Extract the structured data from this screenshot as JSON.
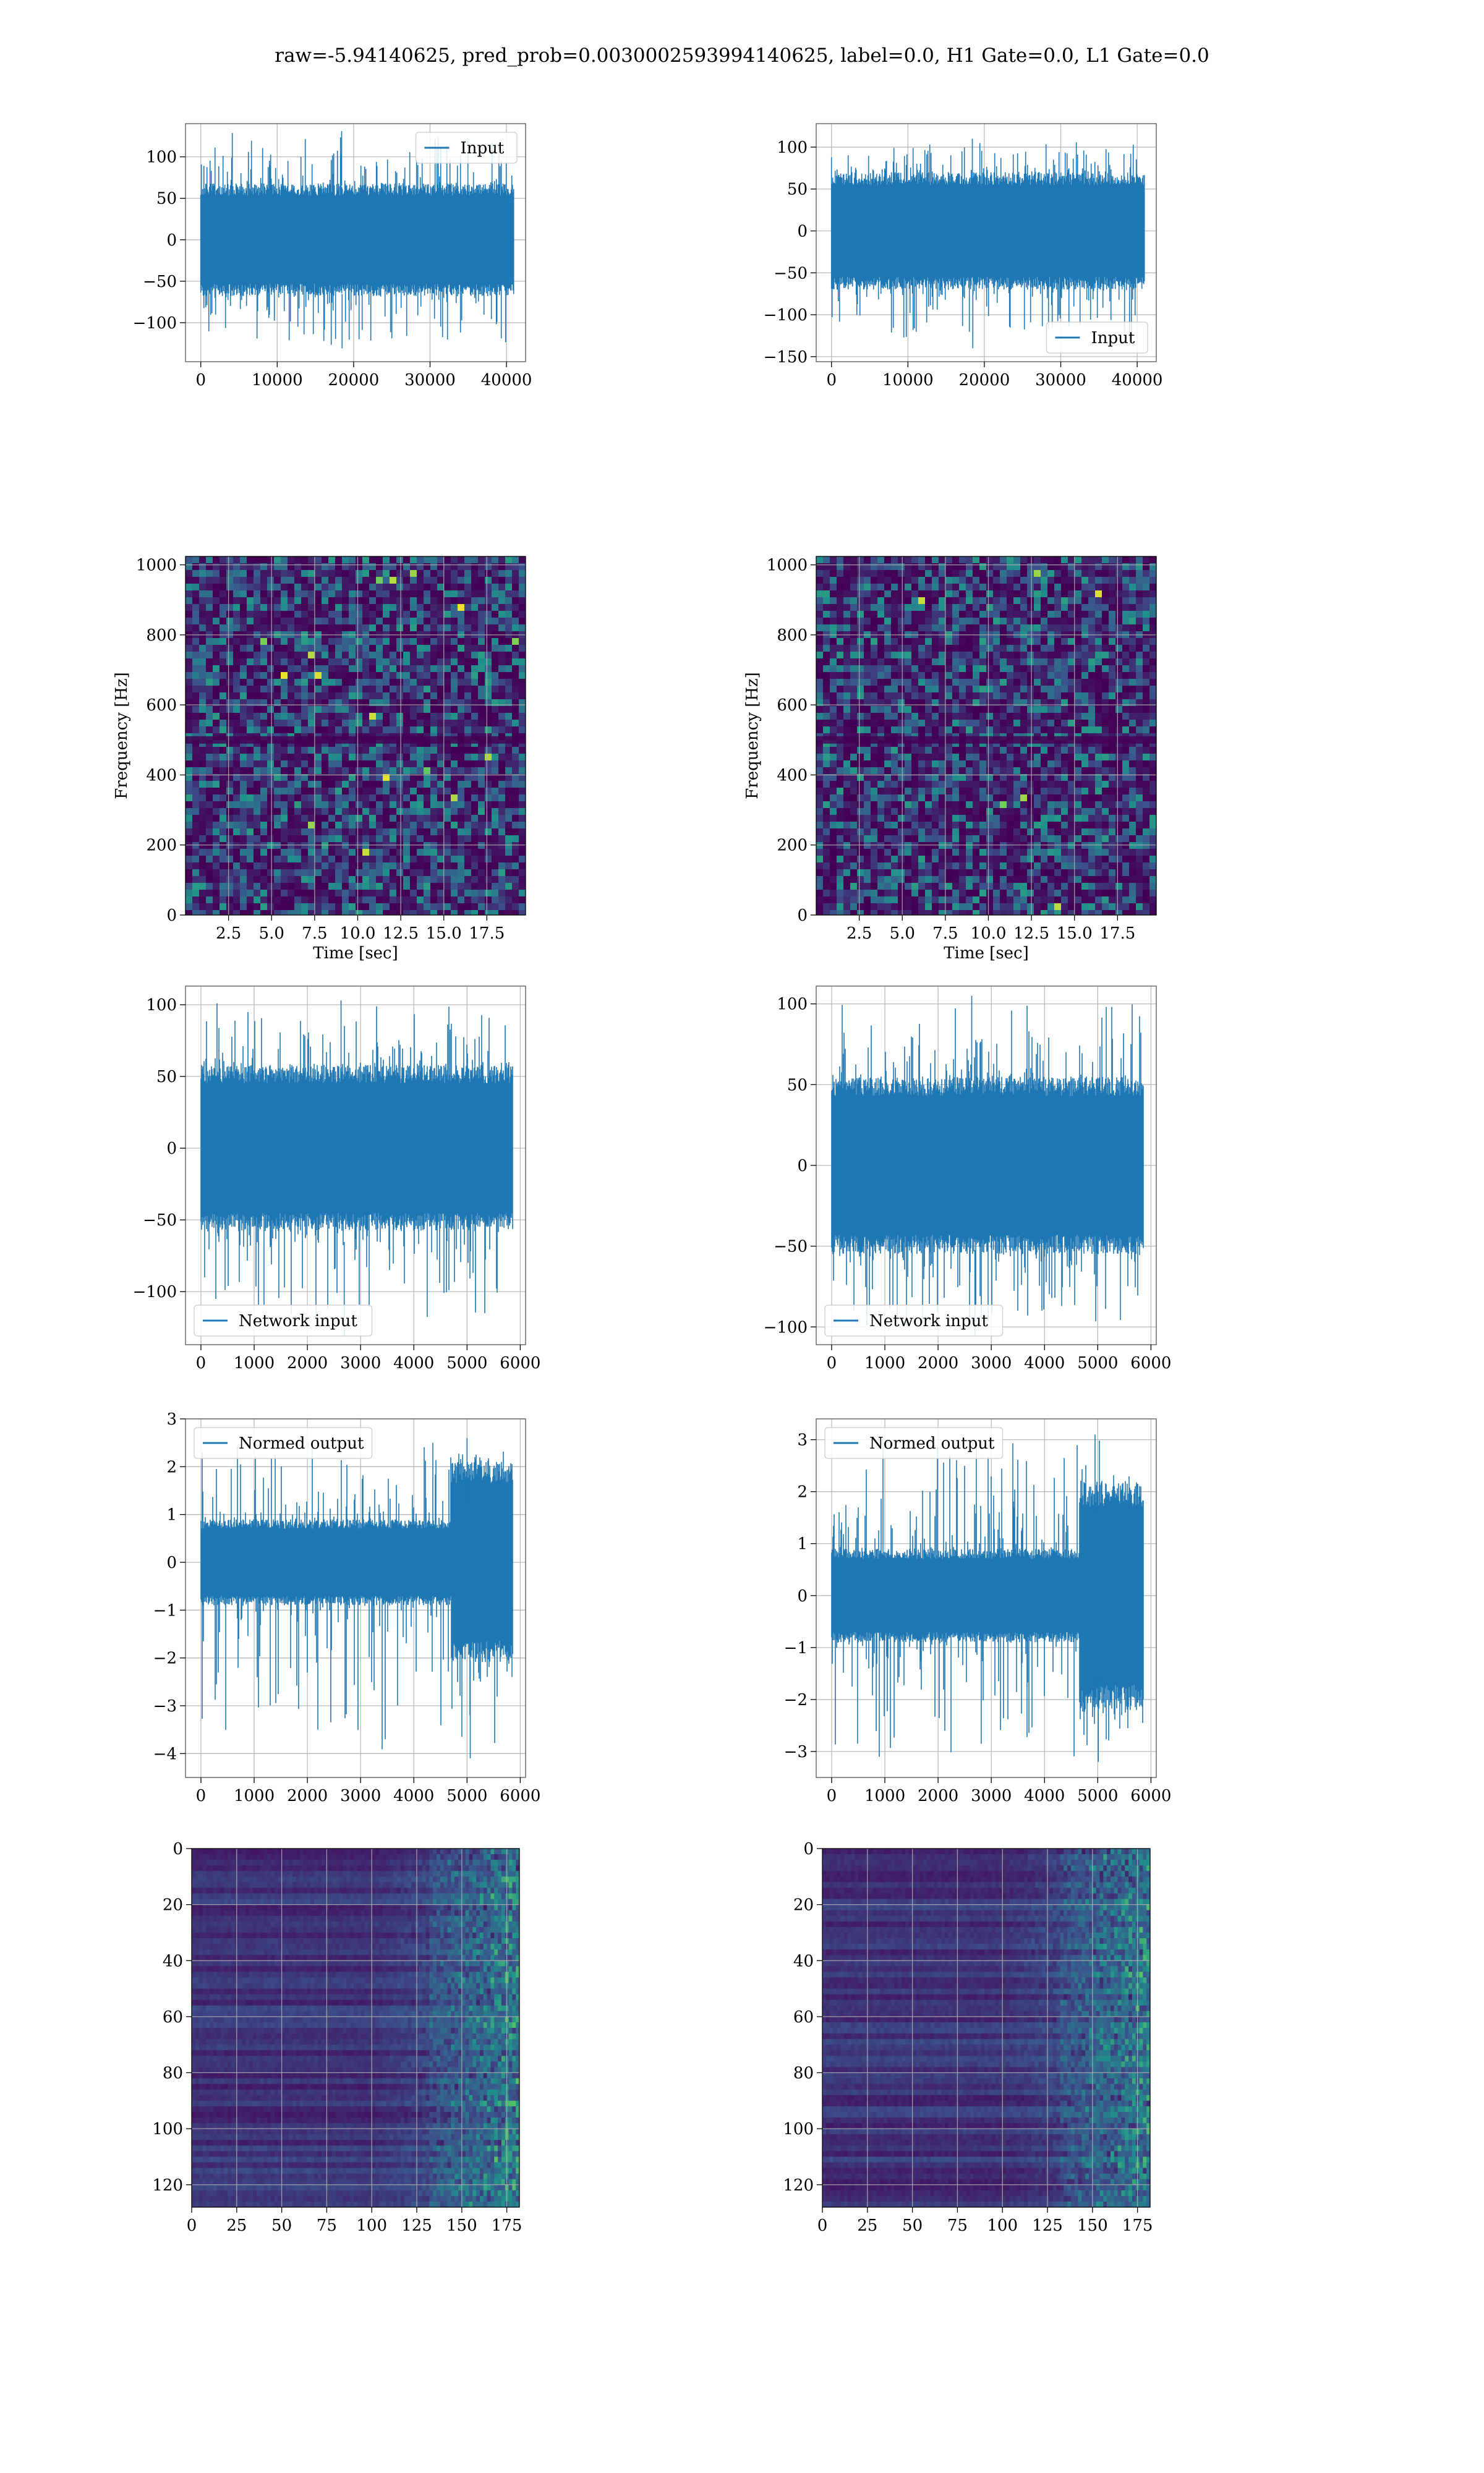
{
  "figure": {
    "suptitle": "raw=-5.94140625, pred_prob=0.0030002593994140625, label=0.0, H1 Gate=0.0, L1 Gate=0.0",
    "colors": {
      "line": "#1f77b4",
      "grid": "#b0b0b0",
      "spine": "#000000",
      "cmap": [
        "#440154",
        "#3b528b",
        "#21918c",
        "#5ec962",
        "#fde725"
      ]
    }
  },
  "chart_data": [
    {
      "id": "r1c1",
      "type": "line",
      "legend": "Input",
      "legend_loc": "upper right",
      "xlim": [
        -2000,
        42500
      ],
      "ylim": [
        -147,
        140
      ],
      "xticks": [
        "0",
        "10000",
        "20000",
        "30000",
        "40000"
      ],
      "xtick_values": [
        0,
        10000,
        20000,
        30000,
        40000
      ],
      "yticks": [
        "−100",
        "−50",
        "0",
        "50",
        "100"
      ],
      "ytick_values": [
        -100,
        -50,
        0,
        50,
        100
      ],
      "series": {
        "x_range": [
          0,
          40960
        ],
        "core": 68,
        "peak_max": 131,
        "peak_min": -131
      }
    },
    {
      "id": "r1c2",
      "type": "line",
      "legend": "Input",
      "legend_loc": "lower right",
      "xlim": [
        -2000,
        42500
      ],
      "ylim": [
        -156,
        128
      ],
      "xticks": [
        "0",
        "10000",
        "20000",
        "30000",
        "40000"
      ],
      "xtick_values": [
        0,
        10000,
        20000,
        30000,
        40000
      ],
      "yticks": [
        "−150",
        "−100",
        "−50",
        "0",
        "50",
        "100"
      ],
      "ytick_values": [
        -150,
        -100,
        -50,
        0,
        50,
        100
      ],
      "series": {
        "x_range": [
          0,
          40960
        ],
        "core": 70,
        "peak_max": 110,
        "peak_min": -140
      }
    },
    {
      "id": "r2c1",
      "type": "heatmap",
      "ylabel": "Frequency [Hz]",
      "xlabel": "Time [sec]",
      "xlim": [
        0,
        19.75
      ],
      "ylim": [
        0,
        1024
      ],
      "xticks": [
        "2.5",
        "5.0",
        "7.5",
        "10.0",
        "12.5",
        "15.0",
        "17.5"
      ],
      "xtick_values": [
        2.5,
        5,
        7.5,
        10,
        12.5,
        15,
        17.5
      ],
      "yticks": [
        "0",
        "200",
        "400",
        "600",
        "800",
        "1000"
      ],
      "ytick_values": [
        0,
        200,
        400,
        600,
        800,
        1000
      ]
    },
    {
      "id": "r2c2",
      "type": "heatmap",
      "ylabel": "Frequency [Hz]",
      "xlabel": "Time [sec]",
      "xlim": [
        0,
        19.75
      ],
      "ylim": [
        0,
        1024
      ],
      "xticks": [
        "2.5",
        "5.0",
        "7.5",
        "10.0",
        "12.5",
        "15.0",
        "17.5"
      ],
      "xtick_values": [
        2.5,
        5,
        7.5,
        10,
        12.5,
        15,
        17.5
      ],
      "yticks": [
        "0",
        "200",
        "400",
        "600",
        "800",
        "1000"
      ],
      "ytick_values": [
        0,
        200,
        400,
        600,
        800,
        1000
      ]
    },
    {
      "id": "r3c1",
      "type": "line",
      "legend": "Network input",
      "legend_loc": "lower left",
      "xlim": [
        -290,
        6100
      ],
      "ylim": [
        -137,
        113
      ],
      "xticks": [
        "0",
        "1000",
        "2000",
        "3000",
        "4000",
        "5000",
        "6000"
      ],
      "xtick_values": [
        0,
        1000,
        2000,
        3000,
        4000,
        5000,
        6000
      ],
      "yticks": [
        "−100",
        "−50",
        "0",
        "50",
        "100"
      ],
      "ytick_values": [
        -100,
        -50,
        0,
        50,
        100
      ],
      "series": {
        "x_range": [
          0,
          5850
        ],
        "core": 58,
        "peak_max": 103,
        "peak_min": -131
      }
    },
    {
      "id": "r3c2",
      "type": "line",
      "legend": "Network input",
      "legend_loc": "lower left",
      "xlim": [
        -290,
        6100
      ],
      "ylim": [
        -111,
        111
      ],
      "xticks": [
        "0",
        "1000",
        "2000",
        "3000",
        "4000",
        "5000",
        "6000"
      ],
      "xtick_values": [
        0,
        1000,
        2000,
        3000,
        4000,
        5000,
        6000
      ],
      "yticks": [
        "−100",
        "−50",
        "0",
        "50",
        "100"
      ],
      "ytick_values": [
        -100,
        -50,
        0,
        50,
        100
      ],
      "series": {
        "x_range": [
          0,
          5850
        ],
        "core": 55,
        "peak_max": 105,
        "peak_min": -105
      }
    },
    {
      "id": "r4c1",
      "type": "line",
      "legend": "Normed output",
      "legend_loc": "upper left",
      "xlim": [
        -290,
        6100
      ],
      "ylim": [
        -4.5,
        3.0
      ],
      "xticks": [
        "0",
        "1000",
        "2000",
        "3000",
        "4000",
        "5000",
        "6000"
      ],
      "xtick_values": [
        0,
        1000,
        2000,
        3000,
        4000,
        5000,
        6000
      ],
      "yticks": [
        "−4",
        "−3",
        "−2",
        "−1",
        "0",
        "1",
        "2",
        "3"
      ],
      "ytick_values": [
        -4,
        -3,
        -2,
        -1,
        0,
        1,
        2,
        3
      ],
      "series": {
        "x_range": [
          0,
          5850
        ],
        "core": 0.9,
        "burst_start": 4700,
        "burst_core": 2.1,
        "peak_max": 2.6,
        "peak_min": -4.1
      }
    },
    {
      "id": "r4c2",
      "type": "line",
      "legend": "Normed output",
      "legend_loc": "upper left",
      "xlim": [
        -290,
        6100
      ],
      "ylim": [
        -3.5,
        3.4
      ],
      "xticks": [
        "0",
        "1000",
        "2000",
        "3000",
        "4000",
        "5000",
        "6000"
      ],
      "xtick_values": [
        0,
        1000,
        2000,
        3000,
        4000,
        5000,
        6000
      ],
      "yticks": [
        "−3",
        "−2",
        "−1",
        "0",
        "1",
        "2",
        "3"
      ],
      "ytick_values": [
        -3,
        -2,
        -1,
        0,
        1,
        2,
        3
      ],
      "series": {
        "x_range": [
          0,
          5850
        ],
        "core": 0.9,
        "burst_start": 4650,
        "burst_core": 2.2,
        "peak_max": 3.1,
        "peak_min": -3.2
      }
    },
    {
      "id": "r5c1",
      "type": "heatmap",
      "xlim": [
        0,
        182
      ],
      "ylim": [
        128,
        0
      ],
      "xticks": [
        "0",
        "25",
        "50",
        "75",
        "100",
        "125",
        "150",
        "175"
      ],
      "xtick_values": [
        0,
        25,
        50,
        75,
        100,
        125,
        150,
        175
      ],
      "yticks": [
        "0",
        "20",
        "40",
        "60",
        "80",
        "100",
        "120"
      ],
      "ytick_values": [
        0,
        20,
        40,
        60,
        80,
        100,
        120
      ]
    },
    {
      "id": "r5c2",
      "type": "heatmap",
      "xlim": [
        0,
        182
      ],
      "ylim": [
        128,
        0
      ],
      "xticks": [
        "0",
        "25",
        "50",
        "75",
        "100",
        "125",
        "150",
        "175"
      ],
      "xtick_values": [
        0,
        25,
        50,
        75,
        100,
        125,
        150,
        175
      ],
      "yticks": [
        "0",
        "20",
        "40",
        "60",
        "80",
        "100",
        "120"
      ],
      "ytick_values": [
        0,
        20,
        40,
        60,
        80,
        100,
        120
      ]
    }
  ]
}
